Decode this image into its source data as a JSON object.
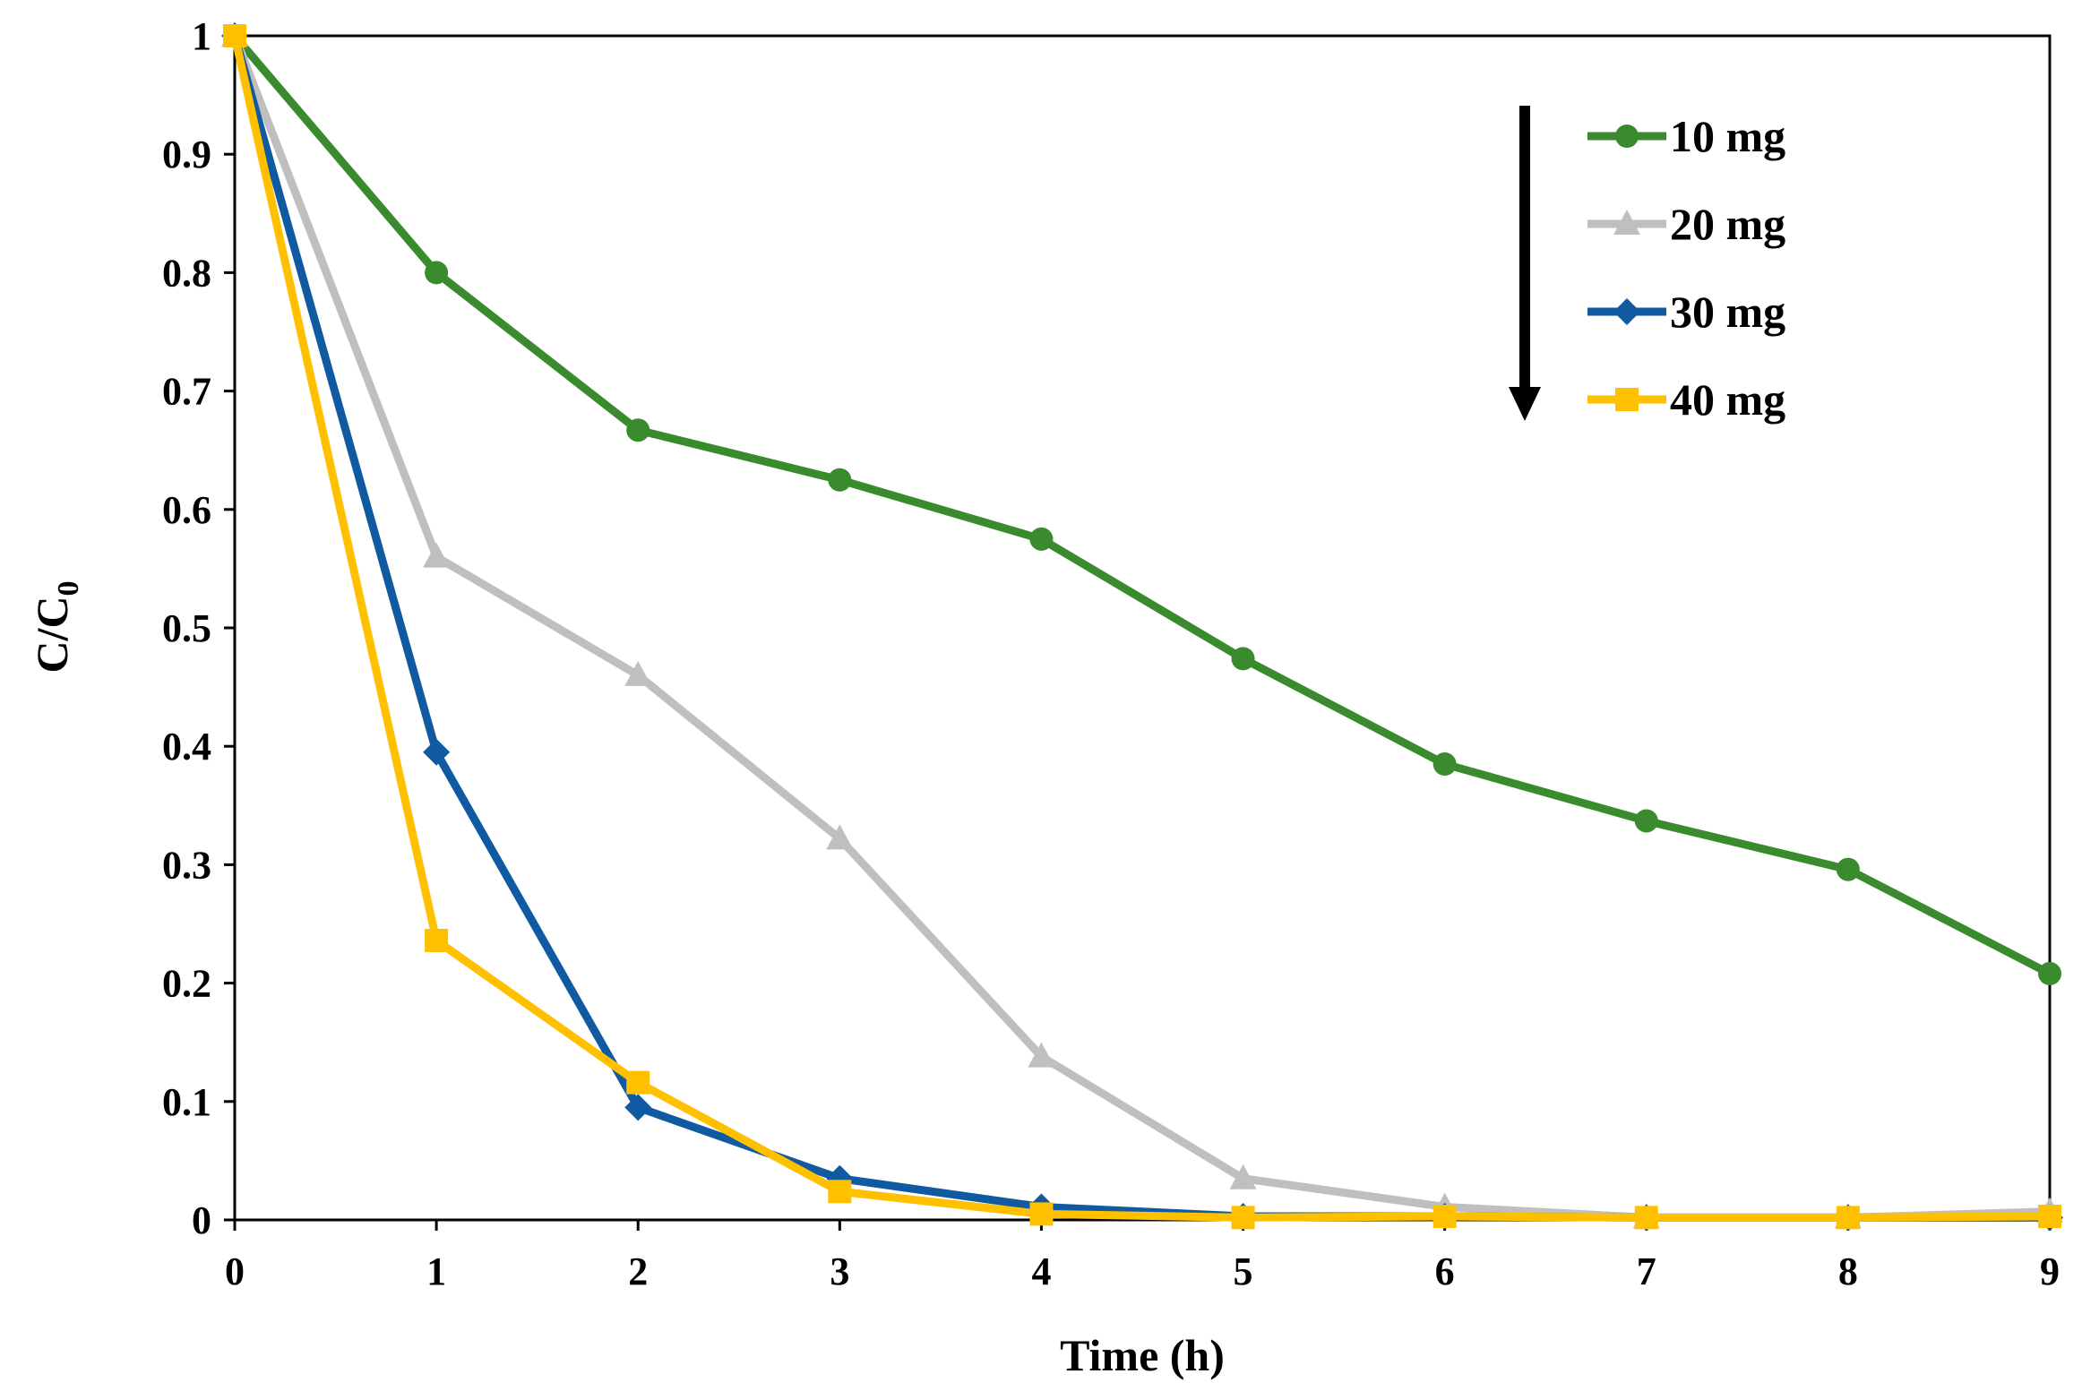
{
  "chart_data": {
    "type": "line",
    "xlabel": "Time (h)",
    "ylabel_main": "C/C",
    "ylabel_sub": "0",
    "xlim": [
      0,
      9
    ],
    "ylim": [
      0,
      1
    ],
    "xticks": [
      "0",
      "1",
      "2",
      "3",
      "4",
      "5",
      "6",
      "7",
      "8",
      "9"
    ],
    "yticks": [
      "0",
      "0.1",
      "0.2",
      "0.3",
      "0.4",
      "0.5",
      "0.6",
      "0.7",
      "0.8",
      "0.9",
      "1"
    ],
    "grid": false,
    "legend_position": "top-right",
    "legend_arrow": "down",
    "x": [
      0,
      1,
      2,
      3,
      4,
      5,
      6,
      7,
      8,
      9
    ],
    "series": [
      {
        "name": "10 mg",
        "color": "#3a8a2e",
        "marker": "circle",
        "values": [
          1.0,
          0.8,
          0.667,
          0.625,
          0.575,
          0.474,
          0.385,
          0.337,
          0.296,
          0.208
        ]
      },
      {
        "name": "20 mg",
        "color": "#bfbfbf",
        "marker": "triangle",
        "values": [
          1.0,
          0.56,
          0.46,
          0.322,
          0.138,
          0.035,
          0.011,
          0.002,
          0.002,
          0.007
        ]
      },
      {
        "name": "30 mg",
        "color": "#0f5aa0",
        "marker": "diamond",
        "values": [
          1.0,
          0.395,
          0.095,
          0.035,
          0.011,
          0.003,
          0.003,
          0.002,
          0.002,
          0.002
        ]
      },
      {
        "name": "40 mg",
        "color": "#ffc000",
        "marker": "square",
        "values": [
          1.0,
          0.236,
          0.116,
          0.024,
          0.005,
          0.002,
          0.003,
          0.002,
          0.002,
          0.003
        ]
      }
    ]
  }
}
